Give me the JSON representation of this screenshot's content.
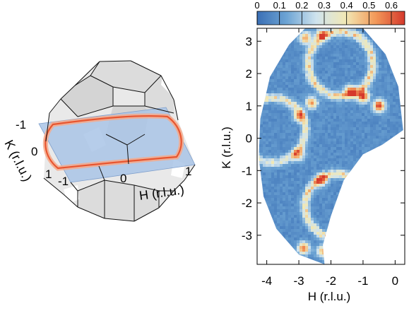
{
  "left_panel": {
    "k_axis_label": "K (r.l.u.)",
    "h_axis_label": "H (r.l.u.)",
    "k_ticks": [
      "-1",
      "0",
      "1"
    ],
    "h_ticks": [
      "-1",
      "0",
      "1"
    ],
    "colors": {
      "polyhedron_fill": "#e6e6e6",
      "plane": "#a9c4e6",
      "contour": "#e8552f"
    }
  },
  "right_panel": {
    "xlabel": "H (r.l.u.)",
    "ylabel": "K (r.l.u.)",
    "xlim": [
      -4.3,
      0.3
    ],
    "ylim": [
      -3.9,
      3.4
    ],
    "xticks": [
      "-4",
      "-3",
      "-2",
      "-1",
      "0"
    ],
    "yticks": [
      "3",
      "2",
      "1",
      "0",
      "-1",
      "-2",
      "-3"
    ],
    "colorbar": {
      "ticks": [
        "0",
        "0.1",
        "0.2",
        "0.3",
        "0.4",
        "0.5",
        "0.6"
      ],
      "range": [
        0,
        0.66
      ],
      "colors": [
        "#3a6fb5",
        "#6da4d4",
        "#cfe3ee",
        "#f1e8b5",
        "#f39a5a",
        "#d5392c"
      ]
    }
  },
  "chart_data": {
    "type": "heatmap",
    "xlabel": "H (r.l.u.)",
    "ylabel": "K (r.l.u.)",
    "xlim": [
      -4.3,
      0.3
    ],
    "ylim": [
      -3.9,
      3.4
    ],
    "background_value": 0.05,
    "rings": [
      {
        "center": [
          -1.7,
          2.3
        ],
        "radius": 1.0,
        "value": 0.35
      },
      {
        "center": [
          -3.8,
          0.25
        ],
        "radius": 1.0,
        "value": 0.3
      },
      {
        "center": [
          -1.8,
          -2.1
        ],
        "radius": 1.0,
        "value": 0.35
      }
    ],
    "hot_spots": [
      {
        "H": -1.0,
        "K": 1.3,
        "value": 0.6
      },
      {
        "H": -0.5,
        "K": 1.0,
        "value": 0.6
      },
      {
        "H": -1.4,
        "K": 1.45,
        "value": 0.5
      },
      {
        "H": -2.8,
        "K": 3.1,
        "value": 0.45
      },
      {
        "H": -2.3,
        "K": 3.2,
        "value": 0.4
      },
      {
        "H": -2.6,
        "K": 1.1,
        "value": 0.45
      },
      {
        "H": -3.0,
        "K": 0.7,
        "value": 0.35
      },
      {
        "H": -3.0,
        "K": -0.5,
        "value": 0.35
      },
      {
        "H": -2.3,
        "K": -1.3,
        "value": 0.4
      },
      {
        "H": -2.85,
        "K": -3.4,
        "value": 0.5
      },
      {
        "H": -2.25,
        "K": -3.5,
        "value": 0.4
      }
    ]
  }
}
